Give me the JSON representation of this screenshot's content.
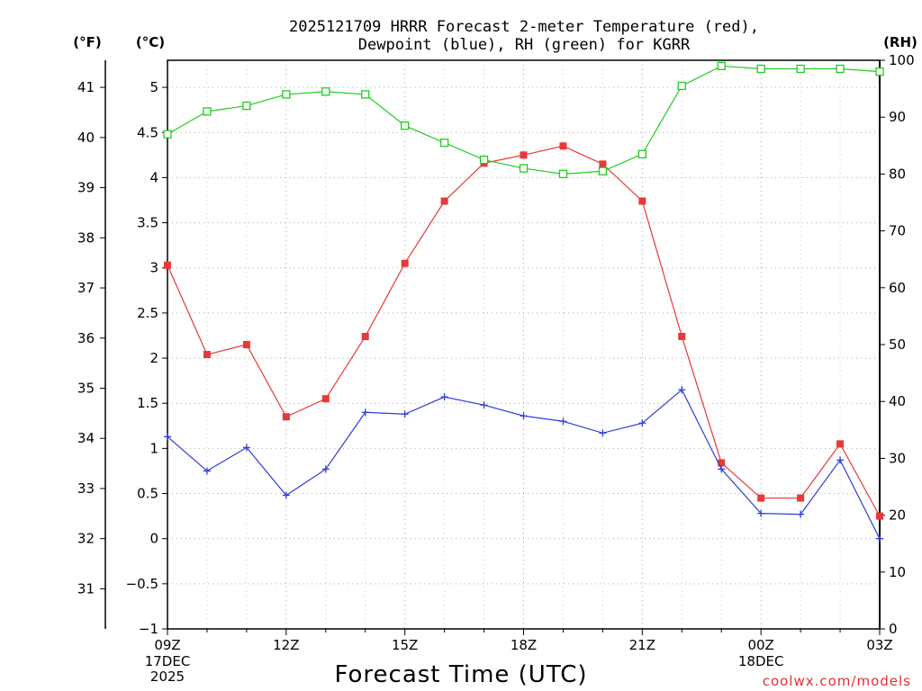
{
  "chart_data": {
    "type": "line",
    "title": "2025121709 HRRR Forecast 2-meter Temperature (red),",
    "subtitle": "Dewpoint (blue), RH (green) for KGRR",
    "xlabel": "Forecast Time (UTC)",
    "left_outer_unit": "(°F)",
    "left_inner_unit": "(°C)",
    "right_unit": "(RH)",
    "credit": "coolwx.com/models",
    "x_hours": [
      9,
      10,
      11,
      12,
      13,
      14,
      15,
      16,
      17,
      18,
      19,
      20,
      21,
      22,
      23,
      24,
      25,
      26,
      27
    ],
    "x_ticks": [
      {
        "hour": 9,
        "label": "09Z"
      },
      {
        "hour": 12,
        "label": "12Z"
      },
      {
        "hour": 15,
        "label": "15Z"
      },
      {
        "hour": 18,
        "label": "18Z"
      },
      {
        "hour": 21,
        "label": "21Z"
      },
      {
        "hour": 24,
        "label": "00Z"
      },
      {
        "hour": 27,
        "label": "03Z"
      }
    ],
    "date_labels": [
      {
        "hour": 9,
        "lines": [
          "17DEC",
          "2025"
        ]
      },
      {
        "hour": 24,
        "lines": [
          "18DEC"
        ]
      }
    ],
    "y_celsius": {
      "min": -1,
      "max": 5.3,
      "ticks": [
        -1,
        -0.5,
        0,
        0.5,
        1,
        1.5,
        2,
        2.5,
        3,
        3.5,
        4,
        4.5,
        5
      ],
      "tick_labels": [
        "−1",
        "−0.5",
        "0",
        "0.5",
        "1",
        "1.5",
        "2",
        "2.5",
        "3",
        "3.5",
        "4",
        "4.5",
        "5"
      ]
    },
    "y_fahrenheit": {
      "ticks": [
        31,
        32,
        33,
        34,
        35,
        36,
        37,
        38,
        39,
        40,
        41
      ],
      "tick_labels": [
        "31",
        "32",
        "33",
        "34",
        "35",
        "36",
        "37",
        "38",
        "39",
        "40",
        "41"
      ]
    },
    "y_rh": {
      "min": 0,
      "max": 100,
      "ticks": [
        0,
        10,
        20,
        30,
        40,
        50,
        60,
        70,
        80,
        90,
        100
      ],
      "tick_labels": [
        "0",
        "10",
        "20",
        "30",
        "40",
        "50",
        "60",
        "70",
        "80",
        "90",
        "100"
      ]
    },
    "series": [
      {
        "name": "2-meter Temperature",
        "axis": "celsius",
        "color": "#e8383a",
        "marker": "filled-square",
        "values": [
          3.03,
          2.04,
          2.15,
          1.35,
          1.55,
          2.24,
          3.05,
          3.74,
          4.16,
          4.25,
          4.35,
          4.15,
          3.74,
          2.24,
          0.84,
          0.45,
          0.45,
          1.05,
          0.25
        ]
      },
      {
        "name": "Dewpoint",
        "axis": "celsius",
        "color": "#2f3fd8",
        "marker": "plus",
        "values": [
          1.13,
          0.75,
          1.01,
          0.48,
          0.77,
          1.4,
          1.38,
          1.57,
          1.48,
          1.36,
          1.3,
          1.17,
          1.28,
          1.65,
          0.77,
          0.28,
          0.27,
          0.87,
          0.0
        ]
      },
      {
        "name": "RH",
        "axis": "rh",
        "color": "#22cc22",
        "marker": "open-square",
        "values": [
          87,
          91,
          92,
          94,
          94.5,
          94,
          88.5,
          85.5,
          82.5,
          81,
          80,
          80.5,
          83.5,
          95.5,
          99,
          98.5,
          98.5,
          98.5,
          98
        ]
      }
    ]
  }
}
